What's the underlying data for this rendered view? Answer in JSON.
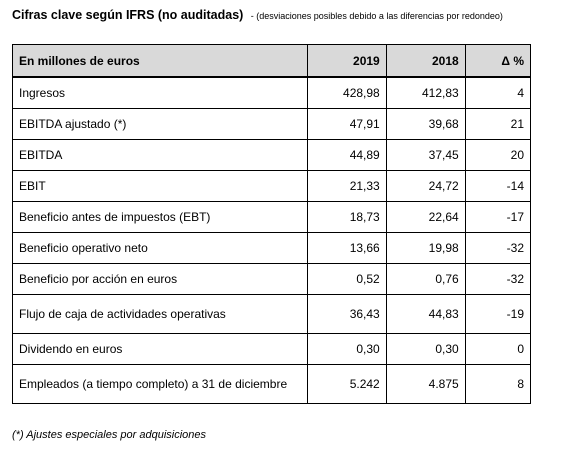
{
  "header": {
    "title": "Cifras clave según IFRS (no auditadas)",
    "note": "- (desviaciones posibles debido a las diferencias por redondeo)"
  },
  "table": {
    "columns": [
      "En millones de euros",
      "2019",
      "2018",
      "Δ %"
    ],
    "rows": [
      {
        "label": "Ingresos",
        "v2019": "428,98",
        "v2018": "412,83",
        "delta": "4"
      },
      {
        "label": "EBITDA ajustado (*)",
        "v2019": "47,91",
        "v2018": "39,68",
        "delta": "21"
      },
      {
        "label": "EBITDA",
        "v2019": "44,89",
        "v2018": "37,45",
        "delta": "20"
      },
      {
        "label": "EBIT",
        "v2019": "21,33",
        "v2018": "24,72",
        "delta": "-14"
      },
      {
        "label": "Beneficio antes de impuestos (EBT)",
        "v2019": "18,73",
        "v2018": "22,64",
        "delta": "-17"
      },
      {
        "label": "Beneficio operativo neto",
        "v2019": "13,66",
        "v2018": "19,98",
        "delta": "-32"
      },
      {
        "label": "Beneficio por acción en euros",
        "v2019": "0,52",
        "v2018": "0,76",
        "delta": "-32"
      },
      {
        "label": "Flujo de caja de actividades operativas",
        "v2019": "36,43",
        "v2018": "44,83",
        "delta": "-19"
      },
      {
        "label": "Dividendo en euros",
        "v2019": "0,30",
        "v2018": "0,30",
        "delta": "0"
      },
      {
        "label": "Empleados (a tiempo completo) a 31 de diciembre",
        "v2019": "5.242",
        "v2018": "4.875",
        "delta": "8"
      }
    ]
  },
  "footnote": "(*) Ajustes especiales por adquisiciones"
}
